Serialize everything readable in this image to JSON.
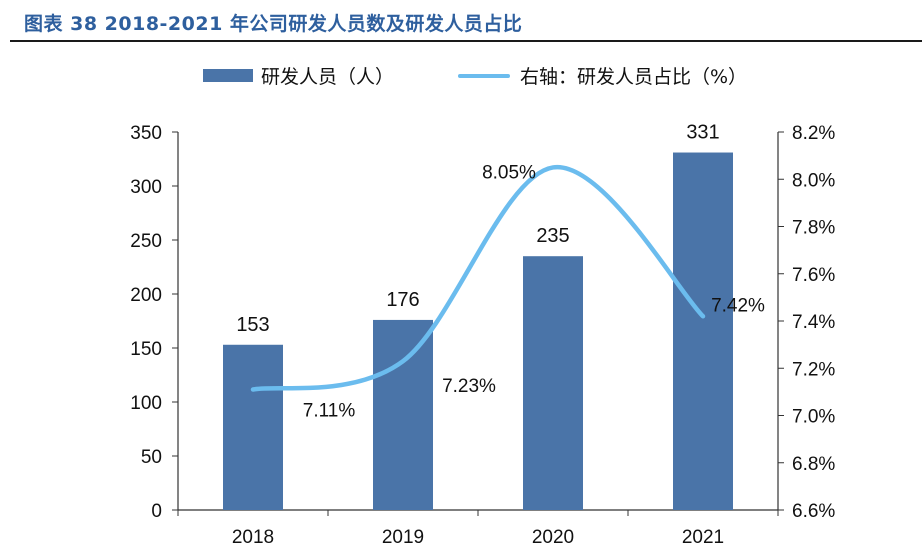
{
  "header": {
    "title": "图表 38 2018-2021 年公司研发人员数及研发人员占比"
  },
  "legend": {
    "bar_label": "研发人员（人）",
    "line_label": "右轴：研发人员占比（%）"
  },
  "colors": {
    "bar": "#4a74a8",
    "line": "#6bbcee",
    "title": "#2e5f9e",
    "axis": "#333333"
  },
  "chart_data": {
    "type": "bar",
    "categories": [
      "2018",
      "2019",
      "2020",
      "2021"
    ],
    "series": [
      {
        "name": "研发人员（人）",
        "type": "bar",
        "axis": "left",
        "values": [
          153,
          176,
          235,
          331
        ],
        "labels": [
          "153",
          "176",
          "235",
          "331"
        ]
      },
      {
        "name": "右轴：研发人员占比（%）",
        "type": "line",
        "axis": "right",
        "smooth": true,
        "values": [
          7.11,
          7.23,
          8.05,
          7.42
        ],
        "labels": [
          "7.11%",
          "7.23%",
          "8.05%",
          "7.42%"
        ]
      }
    ],
    "ylim_left": [
      0,
      350
    ],
    "yticks_left": [
      "0",
      "50",
      "100",
      "150",
      "200",
      "250",
      "300",
      "350"
    ],
    "ylim_right": [
      6.6,
      8.2
    ],
    "yticks_right": [
      "6.6%",
      "6.8%",
      "7.0%",
      "7.2%",
      "7.4%",
      "7.6%",
      "7.8%",
      "8.0%",
      "8.2%"
    ],
    "grid": false,
    "legend_position": "top"
  }
}
